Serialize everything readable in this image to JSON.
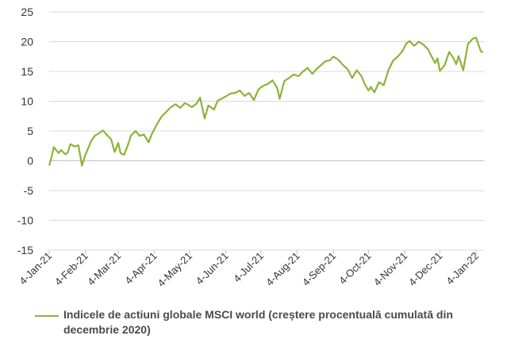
{
  "chart_data": {
    "type": "line",
    "title": "",
    "xlabel": "",
    "ylabel": "",
    "ylim": [
      -15,
      25
    ],
    "y_ticks": [
      "25",
      "20",
      "15",
      "10",
      "5",
      "0",
      "-5",
      "-10",
      "-15"
    ],
    "x_tick_labels": [
      "4-Jan-21",
      "4-Feb-21",
      "4-Mar-21",
      "4-Apr-21",
      "4-May-21",
      "4-Jun-21",
      "4-Jul-21",
      "4-Aug-21",
      "4-Sep-21",
      "4-Oct-21",
      "4-Nov-21",
      "4-Dec-21",
      "4-Jan-22"
    ],
    "x_range": [
      "2021-01-04",
      "2022-01-04"
    ],
    "grid": true,
    "legend_position": "bottom",
    "series": [
      {
        "name": "Indicele de actiuni globale MSCI world (creștere procentuală cumulată din decembrie 2020)",
        "color": "#8DB33A",
        "x": [
          "2021-01-04",
          "2021-01-06",
          "2021-01-08",
          "2021-01-12",
          "2021-01-14",
          "2021-01-18",
          "2021-01-20",
          "2021-01-22",
          "2021-01-26",
          "2021-01-29",
          "2021-02-01",
          "2021-02-03",
          "2021-02-05",
          "2021-02-09",
          "2021-02-12",
          "2021-02-16",
          "2021-02-19",
          "2021-02-22",
          "2021-02-26",
          "2021-03-01",
          "2021-03-04",
          "2021-03-06",
          "2021-03-09",
          "2021-03-12",
          "2021-03-15",
          "2021-03-19",
          "2021-03-22",
          "2021-03-26",
          "2021-03-30",
          "2021-04-02",
          "2021-04-06",
          "2021-04-10",
          "2021-04-14",
          "2021-04-18",
          "2021-04-22",
          "2021-04-26",
          "2021-04-30",
          "2021-05-03",
          "2021-05-06",
          "2021-05-10",
          "2021-05-13",
          "2021-05-17",
          "2021-05-20",
          "2021-05-25",
          "2021-05-28",
          "2021-06-01",
          "2021-06-04",
          "2021-06-08",
          "2021-06-12",
          "2021-06-16",
          "2021-06-20",
          "2021-06-24",
          "2021-06-28",
          "2021-07-02",
          "2021-07-06",
          "2021-07-10",
          "2021-07-14",
          "2021-07-18",
          "2021-07-20",
          "2021-07-24",
          "2021-07-28",
          "2021-08-01",
          "2021-08-05",
          "2021-08-09",
          "2021-08-13",
          "2021-08-17",
          "2021-08-20",
          "2021-08-24",
          "2021-08-28",
          "2021-09-01",
          "2021-09-04",
          "2021-09-08",
          "2021-09-12",
          "2021-09-16",
          "2021-09-20",
          "2021-09-24",
          "2021-09-28",
          "2021-10-01",
          "2021-10-04",
          "2021-10-06",
          "2021-10-09",
          "2021-10-13",
          "2021-10-17",
          "2021-10-21",
          "2021-10-25",
          "2021-10-29",
          "2021-11-02",
          "2021-11-05",
          "2021-11-08",
          "2021-11-12",
          "2021-11-16",
          "2021-11-20",
          "2021-11-24",
          "2021-11-26",
          "2021-11-30",
          "2021-12-02",
          "2021-12-04",
          "2021-12-08",
          "2021-12-12",
          "2021-12-16",
          "2021-12-18",
          "2021-12-20",
          "2021-12-24",
          "2021-12-28",
          "2022-01-01",
          "2022-01-04",
          "2022-01-08",
          "2022-01-10"
        ],
        "values": [
          -0.8,
          0.6,
          2.3,
          1.3,
          1.8,
          1.1,
          1.4,
          2.8,
          2.4,
          2.6,
          -0.8,
          0.5,
          1.5,
          3.4,
          4.2,
          4.7,
          5.1,
          4.4,
          3.6,
          1.5,
          3.0,
          1.3,
          1.0,
          2.5,
          4.3,
          5.0,
          4.2,
          4.4,
          3.1,
          4.6,
          6.1,
          7.4,
          8.2,
          9.0,
          9.5,
          8.9,
          9.7,
          9.4,
          9.0,
          9.6,
          10.6,
          7.1,
          9.3,
          8.6,
          10.1,
          10.5,
          10.8,
          11.3,
          11.4,
          11.8,
          10.9,
          11.4,
          10.2,
          12.0,
          12.6,
          12.9,
          13.5,
          12.2,
          10.4,
          13.4,
          13.9,
          14.5,
          14.2,
          15.0,
          15.6,
          14.6,
          15.3,
          16.0,
          16.7,
          16.9,
          17.5,
          17.0,
          16.1,
          15.4,
          13.9,
          15.2,
          14.2,
          12.8,
          11.8,
          12.4,
          11.5,
          13.2,
          12.7,
          15.2,
          16.8,
          17.5,
          18.4,
          19.6,
          20.1,
          19.3,
          20.0,
          19.5,
          18.7,
          17.9,
          16.4,
          17.2,
          15.1,
          16.0,
          18.3,
          17.1,
          16.2,
          17.6,
          15.2,
          19.6,
          20.5,
          20.7,
          18.4,
          18.2
        ]
      }
    ]
  }
}
